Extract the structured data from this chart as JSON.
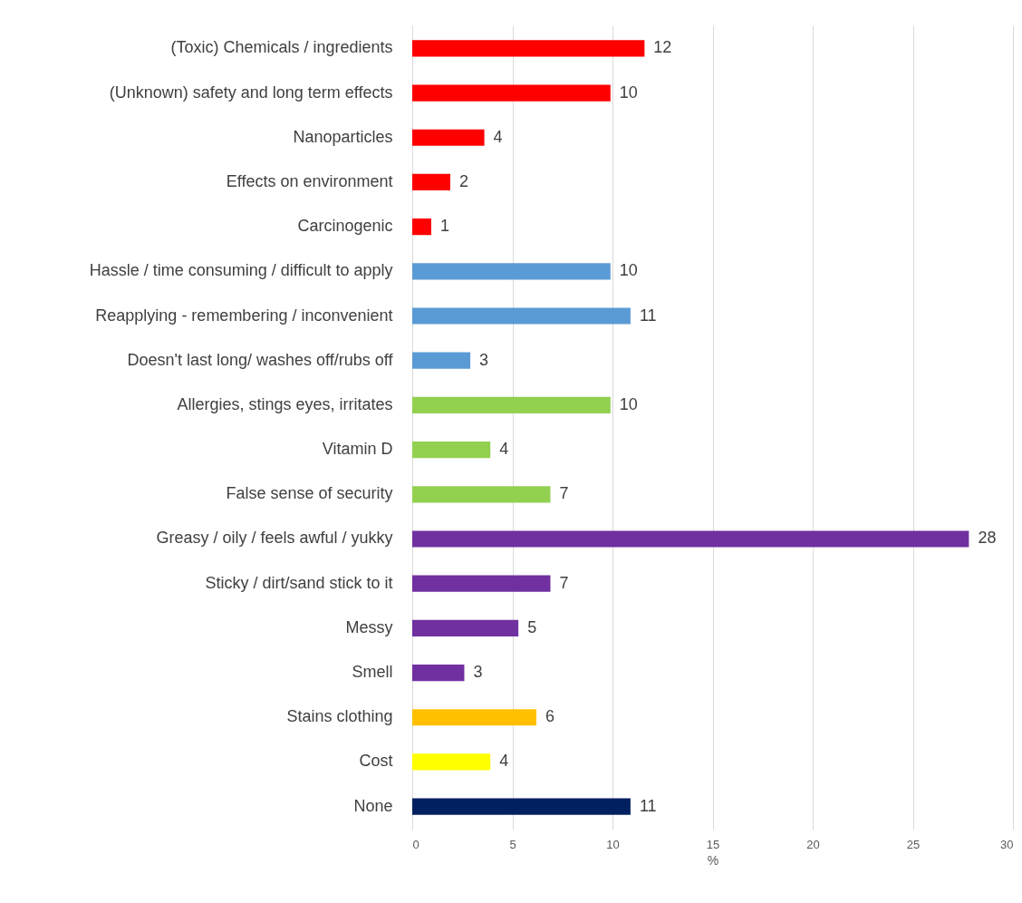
{
  "chart_data": {
    "type": "bar",
    "orientation": "horizontal",
    "xlabel": "%",
    "categories": [
      "(Toxic) Chemicals / ingredients",
      "(Unknown) safety and long term effects",
      "Nanoparticles",
      "Effects on environment",
      "Carcinogenic",
      "Hassle / time consuming / difficult to apply",
      "Reapplying - remembering / inconvenient",
      "Doesn't last long/ washes off/rubs off",
      "Allergies, stings eyes, irritates",
      "Vitamin D",
      "False sense of security",
      "Greasy / oily / feels awful / yukky",
      "Sticky / dirt/sand stick to it",
      "Messy",
      "Smell",
      "Stains clothing",
      "Cost",
      "None"
    ],
    "values": [
      11.6,
      9.9,
      3.6,
      1.9,
      0.95,
      9.9,
      10.9,
      2.9,
      9.9,
      3.9,
      6.9,
      27.8,
      6.9,
      5.3,
      2.6,
      6.2,
      3.9,
      10.9
    ],
    "value_labels": [
      "12",
      "10",
      "4",
      "2",
      "1",
      "10",
      "11",
      "3",
      "10",
      "4",
      "7",
      "28",
      "7",
      "5",
      "3",
      "6",
      "4",
      "11"
    ],
    "colors": [
      "#ff0000",
      "#ff0000",
      "#ff0000",
      "#ff0000",
      "#ff0000",
      "#5b9bd5",
      "#5b9bd5",
      "#5b9bd5",
      "#92d050",
      "#92d050",
      "#92d050",
      "#7030a0",
      "#7030a0",
      "#7030a0",
      "#7030a0",
      "#ffc000",
      "#ffff00",
      "#002060"
    ],
    "xlim": [
      0,
      30
    ],
    "xticks": [
      0,
      5,
      10,
      15,
      20,
      25,
      30
    ],
    "grid": "x"
  }
}
